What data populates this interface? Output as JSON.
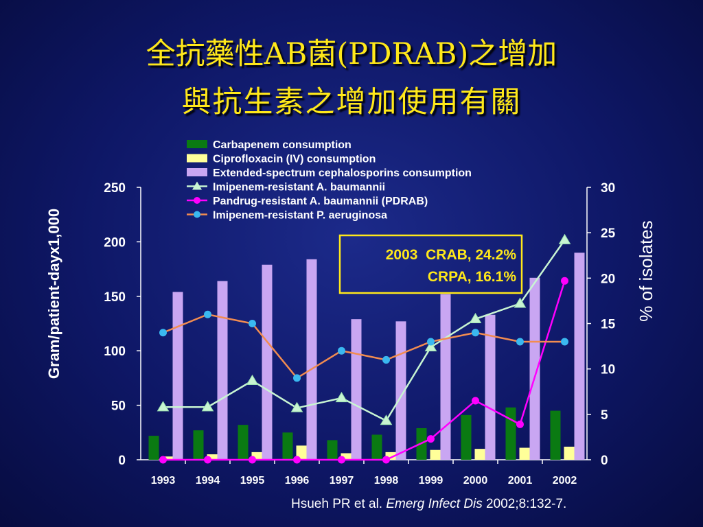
{
  "slide": {
    "title_line1": "全抗藥性AB菌(PDRAB)之增加",
    "title_line2": "與抗生素之增加使用有關",
    "citation": {
      "authors": "Hsueh PR et al. ",
      "journal": "Emerg Infect Dis",
      "ref": " 2002;8:132-7."
    },
    "annotation": {
      "line1": "2003  CRAB, 24.2%",
      "line2": "CRPA, 16.1%"
    }
  },
  "chart_data": {
    "type": "bar",
    "categories": [
      "1993",
      "1994",
      "1995",
      "1996",
      "1997",
      "1998",
      "1999",
      "2000",
      "2001",
      "2002"
    ],
    "ylabel": "Gram/patient-dayx1,000",
    "y2label": "% of isolates",
    "ylim": [
      0,
      250
    ],
    "y2lim": [
      0,
      30
    ],
    "yticks": [
      "0",
      "50",
      "100",
      "150",
      "200",
      "250"
    ],
    "y2ticks": [
      "0",
      "5",
      "10",
      "15",
      "20",
      "25",
      "30"
    ],
    "legend_position": "top",
    "series": [
      {
        "name": "Carbapenem consumption",
        "kind": "bar",
        "axis": "left",
        "color": "#0a7a12",
        "values": [
          22,
          27,
          32,
          25,
          18,
          23,
          29,
          41,
          48,
          45
        ]
      },
      {
        "name": "Ciprofloxacin (IV) consumption",
        "kind": "bar",
        "axis": "left",
        "color": "#ffff99",
        "values": [
          3,
          5,
          7,
          13,
          6,
          7,
          9,
          10,
          11,
          12
        ]
      },
      {
        "name": "Extended-spectrum cephalosporins consumption",
        "kind": "bar",
        "axis": "left",
        "color": "#c9a6f2",
        "values": [
          154,
          164,
          179,
          184,
          129,
          127,
          152,
          133,
          167,
          190
        ]
      },
      {
        "name": "Imipenem-resistant A. baumannii",
        "kind": "line",
        "axis": "right",
        "color": "#c8f5d2",
        "marker": "triangle",
        "values": [
          5.8,
          5.8,
          8.7,
          5.7,
          6.8,
          4.3,
          12.4,
          15.5,
          17.2,
          24.2
        ]
      },
      {
        "name": "Pandrug-resistant A. baumannii (PDRAB)",
        "kind": "line",
        "axis": "right",
        "color": "#ff00ff",
        "marker": "circle",
        "values": [
          0,
          0,
          0,
          0,
          0,
          0,
          2.3,
          6.5,
          3.9,
          19.7
        ]
      },
      {
        "name": "Imipenem-resistant P. aeruginosa",
        "kind": "line",
        "axis": "right",
        "color": "#f28c50",
        "marker": "circle",
        "marker_color": "#3ab8f0",
        "values": [
          14,
          16,
          15,
          9,
          12,
          11,
          13,
          14,
          13,
          13
        ]
      }
    ]
  }
}
